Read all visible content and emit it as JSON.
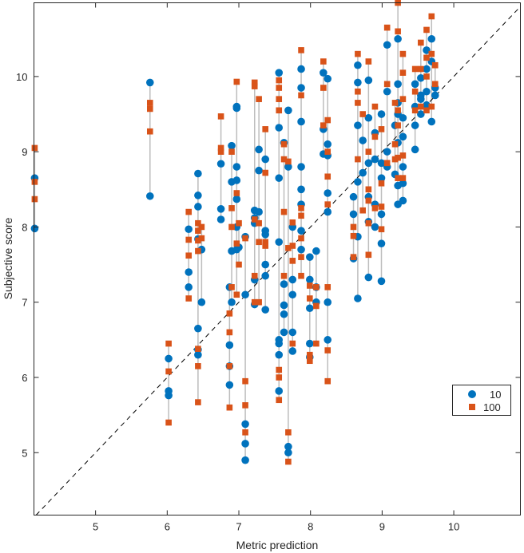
{
  "chart_data": {
    "type": "scatter",
    "title": "",
    "xlabel": "Metric prediction",
    "ylabel": "Subjective score",
    "xlim": [
      4.14,
      10.93
    ],
    "ylim": [
      4.17,
      10.98
    ],
    "xticks": [
      5,
      6,
      7,
      8,
      9,
      10
    ],
    "yticks": [
      5,
      6,
      7,
      8,
      9,
      10
    ],
    "grid": false,
    "reference_line": "y = x (dashed)",
    "legend": {
      "placement": "right",
      "entries": [
        "10",
        "100"
      ]
    },
    "colors": {
      "s10": "#0072BD",
      "s100": "#D95319",
      "connector": "#bdbdbd",
      "reference": "#000000"
    },
    "groups": [
      {
        "x": 4.15,
        "s10": [
          8.65,
          7.98
        ],
        "s100": [
          9.05,
          8.6,
          8.37
        ]
      },
      {
        "x": 5.76,
        "s10": [
          9.92,
          8.41
        ],
        "s100": [
          9.65,
          9.57,
          9.27
        ]
      },
      {
        "x": 6.02,
        "s10": [
          6.25,
          5.82,
          5.76
        ],
        "s100": [
          6.45,
          6.08,
          5.4
        ]
      },
      {
        "x": 6.3,
        "s10": [
          7.97,
          7.4,
          7.2
        ],
        "s100": [
          8.2,
          7.83,
          7.62,
          7.05
        ]
      },
      {
        "x": 6.43,
        "s10": [
          8.71,
          8.42,
          8.27,
          7.84,
          6.65,
          6.37,
          6.3
        ],
        "s100": [
          8.05,
          7.95,
          7.82,
          7.68,
          6.38,
          6.15,
          5.67
        ]
      },
      {
        "x": 6.48,
        "s10": [
          7.7,
          7.0
        ],
        "s100": [
          8.0,
          7.85
        ]
      },
      {
        "x": 6.75,
        "s10": [
          8.84,
          8.24,
          8.1
        ],
        "s100": [
          9.47,
          9.05,
          9.0
        ]
      },
      {
        "x": 6.87,
        "s10": [
          7.2,
          6.43,
          6.15,
          5.9
        ],
        "s100": [
          6.85,
          6.6,
          6.15,
          5.6
        ]
      },
      {
        "x": 6.9,
        "s10": [
          9.08,
          8.6,
          7.68,
          7.0
        ],
        "s100": [
          9.0,
          8.25,
          8.0,
          7.2
        ]
      },
      {
        "x": 6.97,
        "s10": [
          9.6,
          9.58,
          8.8,
          8.62,
          8.37,
          8.0,
          7.7
        ],
        "s100": [
          9.93,
          8.45,
          7.78,
          7.1
        ]
      },
      {
        "x": 7.0,
        "s10": [
          7.73
        ],
        "s100": [
          8.05,
          7.5
        ]
      },
      {
        "x": 7.09,
        "s10": [
          7.87,
          7.1,
          5.38,
          5.12,
          4.9
        ],
        "s100": [
          7.85,
          5.95,
          5.63,
          5.27
        ]
      },
      {
        "x": 7.22,
        "s10": [
          8.22,
          8.12,
          8.05,
          7.3,
          6.97
        ],
        "s100": [
          9.92,
          9.87,
          8.1,
          7.35,
          7.0
        ]
      },
      {
        "x": 7.28,
        "s10": [
          9.03,
          8.75,
          8.2
        ],
        "s100": [
          9.7,
          8.05,
          7.8,
          7.0
        ]
      },
      {
        "x": 7.37,
        "s10": [
          8.9,
          7.95,
          7.9,
          7.5,
          7.35,
          6.9
        ],
        "s100": [
          9.3,
          8.72,
          7.8,
          7.75
        ]
      },
      {
        "x": 7.56,
        "s10": [
          10.05,
          9.32,
          8.65,
          7.8,
          6.5,
          6.45,
          6.3,
          5.82
        ],
        "s100": [
          9.95,
          9.85,
          9.7,
          9.55,
          6.1,
          6.0,
          5.7
        ]
      },
      {
        "x": 7.63,
        "s10": [
          9.12,
          7.24,
          6.96,
          6.84,
          6.6
        ],
        "s100": [
          9.1,
          8.9,
          8.2,
          7.35
        ]
      },
      {
        "x": 7.69,
        "s10": [
          9.55,
          8.8,
          5.08,
          5.0
        ],
        "s100": [
          8.87,
          7.72,
          5.27,
          4.88
        ]
      },
      {
        "x": 7.75,
        "s10": [
          8.0,
          7.3,
          7.1,
          6.6,
          6.35
        ],
        "s100": [
          8.06,
          7.75,
          7.55,
          6.45
        ]
      },
      {
        "x": 7.87,
        "s10": [
          10.1,
          9.85,
          9.4,
          8.8,
          8.5,
          8.3,
          7.95,
          7.7
        ],
        "s100": [
          10.35,
          9.75,
          8.25,
          8.15,
          7.85,
          7.6,
          7.35
        ]
      },
      {
        "x": 7.99,
        "s10": [
          7.6,
          7.3,
          6.92,
          6.45,
          6.27
        ],
        "s100": [
          7.22,
          7.05,
          6.3,
          6.22
        ]
      },
      {
        "x": 8.08,
        "s10": [
          7.68,
          7.2,
          7.0
        ],
        "s100": [
          7.2,
          6.95,
          6.45
        ]
      },
      {
        "x": 8.18,
        "s10": [
          10.05,
          9.3,
          8.97
        ],
        "s100": [
          10.2,
          9.85,
          9.35
        ]
      },
      {
        "x": 8.24,
        "s10": [
          9.97,
          9.1,
          8.95,
          8.45,
          8.2,
          7.0,
          6.5
        ],
        "s100": [
          9.42,
          9.0,
          8.67,
          8.3,
          7.2,
          6.36,
          5.95
        ]
      },
      {
        "x": 8.6,
        "s10": [
          8.4,
          8.17,
          7.58
        ],
        "s100": [
          8.0,
          7.88,
          7.6
        ]
      },
      {
        "x": 8.66,
        "s10": [
          10.15,
          9.92,
          9.35,
          8.6,
          7.87,
          7.05
        ],
        "s100": [
          10.3,
          9.8,
          9.65,
          8.9
        ]
      },
      {
        "x": 8.73,
        "s10": [
          9.15,
          8.72
        ],
        "s100": [
          9.5,
          8.22
        ]
      },
      {
        "x": 8.81,
        "s10": [
          9.95,
          9.45,
          8.85,
          8.4,
          8.07,
          7.33
        ],
        "s100": [
          10.2,
          9.0,
          8.5,
          8.35,
          8.05,
          7.63
        ]
      },
      {
        "x": 8.9,
        "s10": [
          9.25,
          8.9,
          8.3,
          8.0
        ],
        "s100": [
          9.6,
          9.2,
          8.25
        ]
      },
      {
        "x": 8.99,
        "s10": [
          9.5,
          8.85,
          8.65,
          8.17,
          7.78,
          7.28
        ],
        "s100": [
          9.3,
          8.58,
          8.27,
          7.97
        ]
      },
      {
        "x": 9.07,
        "s10": [
          10.42,
          9.8,
          9.0,
          8.8
        ],
        "s100": [
          10.65,
          9.9,
          8.85
        ]
      },
      {
        "x": 9.18,
        "s10": [
          9.35,
          8.7
        ],
        "s100": [
          9.65,
          9.1,
          8.9
        ]
      },
      {
        "x": 9.22,
        "s10": [
          10.5,
          9.9,
          9.65,
          9.5,
          9.12,
          8.55,
          8.3
        ],
        "s100": [
          10.98,
          10.6,
          9.55,
          9.35,
          8.92,
          8.65
        ]
      },
      {
        "x": 9.29,
        "s10": [
          9.45,
          9.2,
          8.8,
          8.58,
          8.35
        ],
        "s100": [
          10.3,
          10.05,
          9.7,
          8.95,
          8.65
        ]
      },
      {
        "x": 9.46,
        "s10": [
          9.9,
          9.6,
          9.35,
          9.03
        ],
        "s100": [
          10.1,
          9.8,
          9.55
        ]
      },
      {
        "x": 9.54,
        "s10": [
          9.98,
          9.75,
          9.7,
          9.5
        ],
        "s100": [
          10.45,
          10.1,
          9.6
        ]
      },
      {
        "x": 9.62,
        "s10": [
          10.35,
          10.1,
          9.8,
          9.62
        ],
        "s100": [
          10.62,
          10.25,
          10.0,
          9.55
        ]
      },
      {
        "x": 9.69,
        "s10": [
          10.5,
          10.2,
          9.4
        ],
        "s100": [
          10.8,
          10.3,
          9.6
        ]
      },
      {
        "x": 9.74,
        "s10": [
          9.85,
          9.75
        ],
        "s100": [
          10.15,
          9.9
        ]
      }
    ]
  }
}
